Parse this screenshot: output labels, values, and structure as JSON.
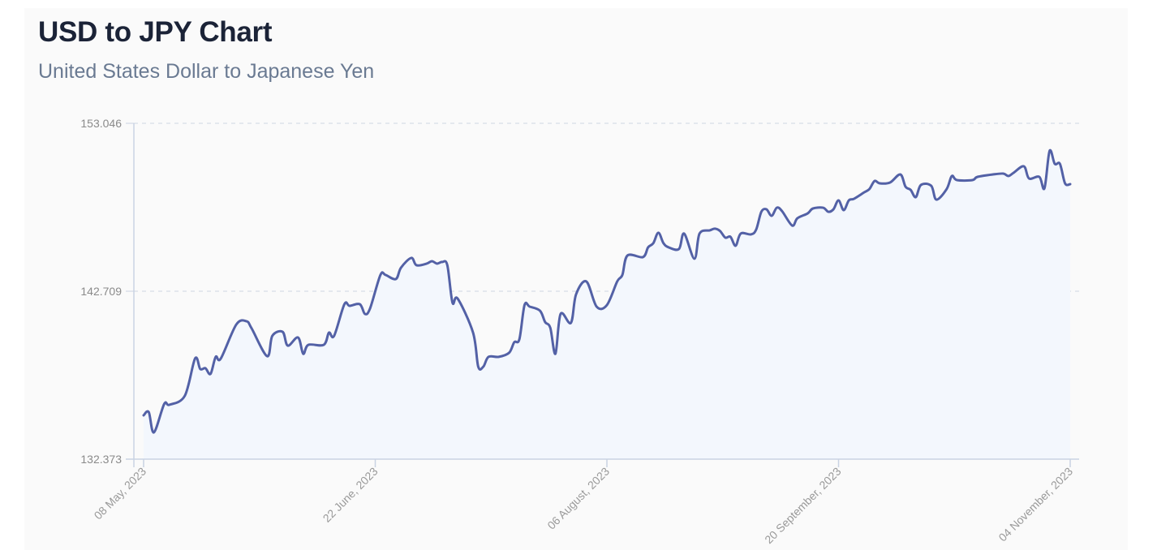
{
  "header": {
    "title": "USD to JPY Chart",
    "subtitle": "United States Dollar to Japanese Yen"
  },
  "chart_data": {
    "type": "area",
    "title": "USD to JPY Chart",
    "subtitle": "United States Dollar to Japanese Yen",
    "xlabel": "",
    "ylabel": "",
    "xlim": [
      "2023-05-08",
      "2023-11-04"
    ],
    "ylim": [
      132.373,
      153.046
    ],
    "y_ticks": [
      "132.373",
      "142.709",
      "153.046"
    ],
    "x_ticks": [
      {
        "date": "2023-05-08",
        "label": "08 May, 2023"
      },
      {
        "date": "2023-06-22",
        "label": "22 June, 2023"
      },
      {
        "date": "2023-08-06",
        "label": "06 August, 2023"
      },
      {
        "date": "2023-09-20",
        "label": "20 September, 2023"
      },
      {
        "date": "2023-11-04",
        "label": "04 November, 2023"
      }
    ],
    "grid": "horizontal dashed",
    "legend": "none",
    "colors": {
      "line": "#5361a6",
      "fill": "#f3f7fd",
      "axis": "#c9d3e3"
    },
    "x": [
      "2023-05-08",
      "2023-05-09",
      "2023-05-10",
      "2023-05-12",
      "2023-05-13",
      "2023-05-16",
      "2023-05-18",
      "2023-05-19",
      "2023-05-20",
      "2023-05-21",
      "2023-05-22",
      "2023-05-23",
      "2023-05-26",
      "2023-05-28",
      "2023-05-29",
      "2023-06-01",
      "2023-06-02",
      "2023-06-04",
      "2023-06-05",
      "2023-06-07",
      "2023-06-08",
      "2023-06-09",
      "2023-06-12",
      "2023-06-13",
      "2023-06-14",
      "2023-06-16",
      "2023-06-17",
      "2023-06-19",
      "2023-06-20",
      "2023-06-21",
      "2023-06-23",
      "2023-06-24",
      "2023-06-26",
      "2023-06-27",
      "2023-06-29",
      "2023-06-30",
      "2023-07-02",
      "2023-07-03",
      "2023-07-04",
      "2023-07-05",
      "2023-07-06",
      "2023-07-07",
      "2023-07-08",
      "2023-07-11",
      "2023-07-12",
      "2023-07-13",
      "2023-07-14",
      "2023-07-16",
      "2023-07-18",
      "2023-07-19",
      "2023-07-20",
      "2023-07-21",
      "2023-07-22",
      "2023-07-24",
      "2023-07-25",
      "2023-07-26",
      "2023-07-27",
      "2023-07-28",
      "2023-07-30",
      "2023-07-31",
      "2023-08-02",
      "2023-08-04",
      "2023-08-06",
      "2023-08-08",
      "2023-08-09",
      "2023-08-10",
      "2023-08-13",
      "2023-08-14",
      "2023-08-15",
      "2023-08-16",
      "2023-08-17",
      "2023-08-18",
      "2023-08-20",
      "2023-08-21",
      "2023-08-23",
      "2023-08-24",
      "2023-08-26",
      "2023-08-27",
      "2023-08-28",
      "2023-08-29",
      "2023-08-30",
      "2023-08-31",
      "2023-09-01",
      "2023-09-03",
      "2023-09-04",
      "2023-09-05",
      "2023-09-06",
      "2023-09-07",
      "2023-09-08",
      "2023-09-09",
      "2023-09-11",
      "2023-09-12",
      "2023-09-14",
      "2023-09-15",
      "2023-09-17",
      "2023-09-18",
      "2023-09-19",
      "2023-09-20",
      "2023-09-21",
      "2023-09-22",
      "2023-09-23",
      "2023-09-25",
      "2023-09-26",
      "2023-09-27",
      "2023-09-28",
      "2023-09-30",
      "2023-10-02",
      "2023-10-03",
      "2023-10-04",
      "2023-10-05",
      "2023-10-06",
      "2023-10-08",
      "2023-10-09",
      "2023-10-11",
      "2023-10-12",
      "2023-10-13",
      "2023-10-16",
      "2023-10-17",
      "2023-10-20",
      "2023-10-22",
      "2023-10-23",
      "2023-10-24",
      "2023-10-26",
      "2023-10-27",
      "2023-10-29",
      "2023-10-30",
      "2023-10-31",
      "2023-11-01",
      "2023-11-02",
      "2023-11-03",
      "2023-11-04"
    ],
    "series": [
      {
        "values": [
          135.07,
          135.27,
          134.02,
          135.77,
          135.72,
          136.27,
          138.57,
          137.92,
          137.97,
          137.62,
          138.67,
          138.57,
          140.66,
          140.86,
          140.41,
          138.71,
          139.96,
          140.21,
          139.36,
          139.86,
          138.86,
          139.41,
          139.41,
          140.16,
          139.96,
          141.91,
          141.81,
          141.91,
          141.31,
          141.66,
          143.71,
          143.71,
          143.46,
          144.16,
          144.76,
          144.31,
          144.41,
          144.56,
          144.41,
          144.51,
          144.31,
          142.01,
          142.26,
          140.16,
          138.07,
          138.07,
          138.67,
          138.67,
          138.92,
          139.57,
          139.76,
          141.86,
          141.76,
          141.51,
          140.81,
          140.46,
          138.86,
          141.31,
          140.76,
          142.51,
          143.31,
          141.76,
          141.86,
          143.31,
          143.71,
          144.91,
          144.81,
          145.41,
          145.66,
          146.31,
          145.66,
          145.41,
          145.31,
          146.26,
          144.71,
          146.26,
          146.46,
          146.56,
          146.41,
          146.01,
          146.06,
          145.51,
          146.26,
          146.21,
          146.51,
          147.6,
          147.75,
          147.35,
          147.85,
          147.65,
          146.75,
          147.2,
          147.5,
          147.8,
          147.85,
          147.6,
          147.75,
          148.3,
          147.7,
          148.3,
          148.4,
          148.8,
          149.0,
          149.5,
          149.35,
          149.4,
          149.9,
          149.15,
          148.95,
          148.5,
          149.25,
          149.2,
          148.35,
          149.0,
          149.8,
          149.55,
          149.55,
          149.75,
          149.9,
          149.95,
          149.8,
          150.0,
          150.4,
          149.65,
          149.75,
          149.05,
          151.35,
          150.55,
          150.55,
          149.35,
          149.3
        ]
      }
    ]
  }
}
